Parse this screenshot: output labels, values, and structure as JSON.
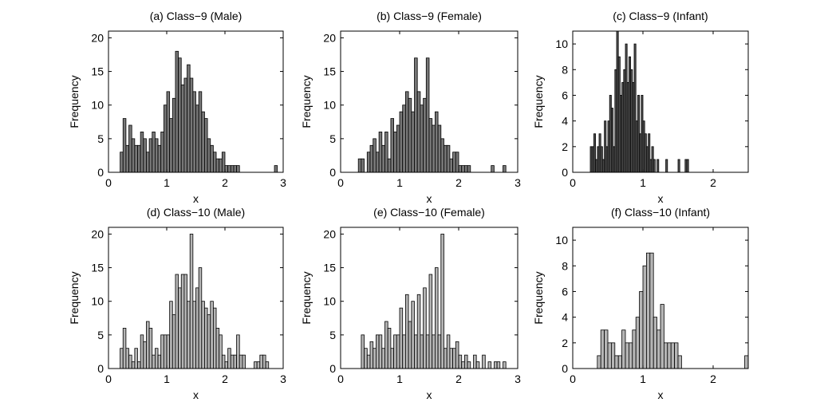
{
  "figure": {
    "background": "#ffffff"
  },
  "chart_data": [
    {
      "type": "bar",
      "title": "(a) Class−9 (Male)",
      "xlabel": "x",
      "ylabel": "Frequency",
      "xlim": [
        0,
        3
      ],
      "ylim": [
        0,
        21
      ],
      "xticks": [
        0,
        1,
        2,
        3
      ],
      "yticks": [
        0,
        5,
        10,
        15,
        20
      ],
      "bar_color": "#777777",
      "bin_width": 0.05,
      "bins": [
        [
          0.2,
          3
        ],
        [
          0.25,
          8
        ],
        [
          0.3,
          4
        ],
        [
          0.35,
          7
        ],
        [
          0.4,
          5
        ],
        [
          0.45,
          4
        ],
        [
          0.5,
          4
        ],
        [
          0.55,
          6
        ],
        [
          0.6,
          5
        ],
        [
          0.65,
          3
        ],
        [
          0.7,
          5
        ],
        [
          0.75,
          6
        ],
        [
          0.8,
          5
        ],
        [
          0.85,
          4
        ],
        [
          0.9,
          6
        ],
        [
          0.95,
          10
        ],
        [
          1.0,
          12
        ],
        [
          1.05,
          8
        ],
        [
          1.1,
          11
        ],
        [
          1.15,
          18
        ],
        [
          1.2,
          17
        ],
        [
          1.25,
          13
        ],
        [
          1.3,
          14
        ],
        [
          1.35,
          16
        ],
        [
          1.4,
          14
        ],
        [
          1.45,
          12
        ],
        [
          1.5,
          10
        ],
        [
          1.55,
          12
        ],
        [
          1.6,
          9
        ],
        [
          1.65,
          8
        ],
        [
          1.7,
          5
        ],
        [
          1.75,
          4
        ],
        [
          1.8,
          3
        ],
        [
          1.85,
          2
        ],
        [
          1.9,
          2
        ],
        [
          1.95,
          3
        ],
        [
          2.0,
          1
        ],
        [
          2.05,
          1
        ],
        [
          2.1,
          1
        ],
        [
          2.15,
          1
        ],
        [
          2.2,
          1
        ],
        [
          2.85,
          1
        ]
      ]
    },
    {
      "type": "bar",
      "title": "(b) Class−9 (Female)",
      "xlabel": "x",
      "ylabel": "Frequency",
      "xlim": [
        0,
        3
      ],
      "ylim": [
        0,
        21
      ],
      "xticks": [
        0,
        1,
        2,
        3
      ],
      "yticks": [
        0,
        5,
        10,
        15,
        20
      ],
      "bar_color": "#777777",
      "bin_width": 0.05,
      "bins": [
        [
          0.3,
          2
        ],
        [
          0.35,
          2
        ],
        [
          0.45,
          3
        ],
        [
          0.5,
          4
        ],
        [
          0.55,
          5
        ],
        [
          0.6,
          3
        ],
        [
          0.65,
          6
        ],
        [
          0.7,
          4
        ],
        [
          0.75,
          6
        ],
        [
          0.8,
          2
        ],
        [
          0.85,
          8
        ],
        [
          0.9,
          6
        ],
        [
          0.95,
          7
        ],
        [
          1.0,
          9
        ],
        [
          1.05,
          10
        ],
        [
          1.1,
          12
        ],
        [
          1.15,
          11
        ],
        [
          1.2,
          9
        ],
        [
          1.25,
          17
        ],
        [
          1.3,
          12
        ],
        [
          1.35,
          10
        ],
        [
          1.4,
          11
        ],
        [
          1.45,
          17
        ],
        [
          1.5,
          8
        ],
        [
          1.55,
          7
        ],
        [
          1.6,
          9
        ],
        [
          1.65,
          7
        ],
        [
          1.7,
          5
        ],
        [
          1.75,
          4
        ],
        [
          1.8,
          4
        ],
        [
          1.85,
          2
        ],
        [
          1.9,
          3
        ],
        [
          1.95,
          3
        ],
        [
          2.0,
          1
        ],
        [
          2.05,
          1
        ],
        [
          2.1,
          1
        ],
        [
          2.15,
          1
        ],
        [
          2.55,
          1
        ],
        [
          2.75,
          1
        ]
      ]
    },
    {
      "type": "bar",
      "title": "(c) Class−9 (Infant)",
      "xlabel": "x",
      "ylabel": "Frequency",
      "xlim": [
        0,
        2.5
      ],
      "ylim": [
        0,
        11
      ],
      "xticks": [
        0,
        1,
        2
      ],
      "yticks": [
        0,
        2,
        4,
        6,
        8,
        10
      ],
      "bar_color": "#555555",
      "bin_width": 0.025,
      "bins": [
        [
          0.25,
          2
        ],
        [
          0.275,
          2
        ],
        [
          0.3,
          3
        ],
        [
          0.325,
          1
        ],
        [
          0.35,
          2
        ],
        [
          0.375,
          3
        ],
        [
          0.4,
          2
        ],
        [
          0.425,
          1
        ],
        [
          0.45,
          4
        ],
        [
          0.475,
          2
        ],
        [
          0.5,
          4
        ],
        [
          0.525,
          6
        ],
        [
          0.55,
          5
        ],
        [
          0.575,
          2
        ],
        [
          0.6,
          8
        ],
        [
          0.625,
          11
        ],
        [
          0.65,
          9
        ],
        [
          0.675,
          6
        ],
        [
          0.7,
          7
        ],
        [
          0.725,
          8
        ],
        [
          0.75,
          10
        ],
        [
          0.775,
          7
        ],
        [
          0.8,
          9
        ],
        [
          0.825,
          8
        ],
        [
          0.85,
          7
        ],
        [
          0.875,
          10
        ],
        [
          0.9,
          4
        ],
        [
          0.925,
          6
        ],
        [
          0.95,
          3
        ],
        [
          0.975,
          6
        ],
        [
          1.0,
          4
        ],
        [
          1.025,
          3
        ],
        [
          1.05,
          2
        ],
        [
          1.075,
          3
        ],
        [
          1.1,
          1
        ],
        [
          1.125,
          2
        ],
        [
          1.15,
          1
        ],
        [
          1.2,
          1
        ],
        [
          1.325,
          1
        ],
        [
          1.5,
          1
        ],
        [
          1.6,
          1
        ],
        [
          1.625,
          1
        ]
      ]
    },
    {
      "type": "bar",
      "title": "(d) Class−10 (Male)",
      "xlabel": "x",
      "ylabel": "Frequency",
      "xlim": [
        0,
        3
      ],
      "ylim": [
        0,
        21
      ],
      "xticks": [
        0,
        1,
        2,
        3
      ],
      "yticks": [
        0,
        5,
        10,
        15,
        20
      ],
      "bar_color": "#b5b5b5",
      "bin_width": 0.05,
      "bins": [
        [
          0.2,
          3
        ],
        [
          0.25,
          6
        ],
        [
          0.3,
          3
        ],
        [
          0.35,
          2
        ],
        [
          0.4,
          1
        ],
        [
          0.45,
          3
        ],
        [
          0.5,
          1
        ],
        [
          0.55,
          5
        ],
        [
          0.6,
          4
        ],
        [
          0.65,
          7
        ],
        [
          0.7,
          6
        ],
        [
          0.75,
          2
        ],
        [
          0.8,
          3
        ],
        [
          0.85,
          2
        ],
        [
          0.9,
          5
        ],
        [
          0.95,
          5
        ],
        [
          1.0,
          5
        ],
        [
          1.05,
          10
        ],
        [
          1.1,
          8
        ],
        [
          1.15,
          14
        ],
        [
          1.2,
          12
        ],
        [
          1.25,
          14
        ],
        [
          1.3,
          14
        ],
        [
          1.35,
          10
        ],
        [
          1.4,
          20
        ],
        [
          1.45,
          10
        ],
        [
          1.5,
          12
        ],
        [
          1.55,
          15
        ],
        [
          1.6,
          10
        ],
        [
          1.65,
          9
        ],
        [
          1.7,
          8
        ],
        [
          1.75,
          10
        ],
        [
          1.8,
          9
        ],
        [
          1.85,
          6
        ],
        [
          1.9,
          5
        ],
        [
          1.95,
          2
        ],
        [
          2.0,
          1
        ],
        [
          2.05,
          3
        ],
        [
          2.1,
          2
        ],
        [
          2.15,
          2
        ],
        [
          2.2,
          5
        ],
        [
          2.25,
          2
        ],
        [
          2.3,
          2
        ],
        [
          2.5,
          1
        ],
        [
          2.55,
          1
        ],
        [
          2.6,
          2
        ],
        [
          2.65,
          2
        ],
        [
          2.7,
          1
        ]
      ]
    },
    {
      "type": "bar",
      "title": "(e) Class−10 (Female)",
      "xlabel": "x",
      "ylabel": "Frequency",
      "xlim": [
        0,
        3
      ],
      "ylim": [
        0,
        21
      ],
      "xticks": [
        0,
        1,
        2,
        3
      ],
      "yticks": [
        0,
        5,
        10,
        15,
        20
      ],
      "bar_color": "#b5b5b5",
      "bin_width": 0.05,
      "bins": [
        [
          0.35,
          5
        ],
        [
          0.4,
          3
        ],
        [
          0.45,
          2
        ],
        [
          0.5,
          4
        ],
        [
          0.55,
          3
        ],
        [
          0.6,
          5
        ],
        [
          0.65,
          5
        ],
        [
          0.7,
          3
        ],
        [
          0.75,
          7
        ],
        [
          0.8,
          6
        ],
        [
          0.85,
          3
        ],
        [
          0.9,
          5
        ],
        [
          0.95,
          5
        ],
        [
          1.0,
          9
        ],
        [
          1.05,
          5
        ],
        [
          1.1,
          11
        ],
        [
          1.15,
          7
        ],
        [
          1.2,
          10
        ],
        [
          1.25,
          5
        ],
        [
          1.3,
          11
        ],
        [
          1.35,
          5
        ],
        [
          1.4,
          12
        ],
        [
          1.45,
          5
        ],
        [
          1.5,
          14
        ],
        [
          1.55,
          5
        ],
        [
          1.6,
          15
        ],
        [
          1.65,
          5
        ],
        [
          1.7,
          20
        ],
        [
          1.75,
          3
        ],
        [
          1.8,
          5
        ],
        [
          1.85,
          3
        ],
        [
          1.9,
          3
        ],
        [
          1.95,
          4
        ],
        [
          2.0,
          2
        ],
        [
          2.05,
          1
        ],
        [
          2.1,
          2
        ],
        [
          2.15,
          1
        ],
        [
          2.25,
          2
        ],
        [
          2.3,
          1
        ],
        [
          2.4,
          2
        ],
        [
          2.5,
          1
        ],
        [
          2.6,
          1
        ],
        [
          2.65,
          1
        ],
        [
          2.75,
          1
        ]
      ]
    },
    {
      "type": "bar",
      "title": "(f) Class−10 (Infant)",
      "xlabel": "x",
      "ylabel": "Frequency",
      "xlim": [
        0,
        2.5
      ],
      "ylim": [
        0,
        11
      ],
      "xticks": [
        0,
        1,
        2
      ],
      "yticks": [
        0,
        2,
        4,
        6,
        8,
        10
      ],
      "bar_color": "#b5b5b5",
      "bin_width": 0.05,
      "bins": [
        [
          0.35,
          1
        ],
        [
          0.4,
          3
        ],
        [
          0.45,
          3
        ],
        [
          0.5,
          2
        ],
        [
          0.55,
          2
        ],
        [
          0.6,
          1
        ],
        [
          0.65,
          1
        ],
        [
          0.7,
          3
        ],
        [
          0.75,
          2
        ],
        [
          0.8,
          2
        ],
        [
          0.85,
          3
        ],
        [
          0.9,
          4
        ],
        [
          0.95,
          6
        ],
        [
          1.0,
          8
        ],
        [
          1.05,
          9
        ],
        [
          1.1,
          9
        ],
        [
          1.15,
          4
        ],
        [
          1.2,
          3
        ],
        [
          1.25,
          5
        ],
        [
          1.3,
          2
        ],
        [
          1.35,
          2
        ],
        [
          1.4,
          2
        ],
        [
          1.45,
          2
        ],
        [
          1.5,
          1
        ],
        [
          2.45,
          1
        ]
      ]
    }
  ]
}
